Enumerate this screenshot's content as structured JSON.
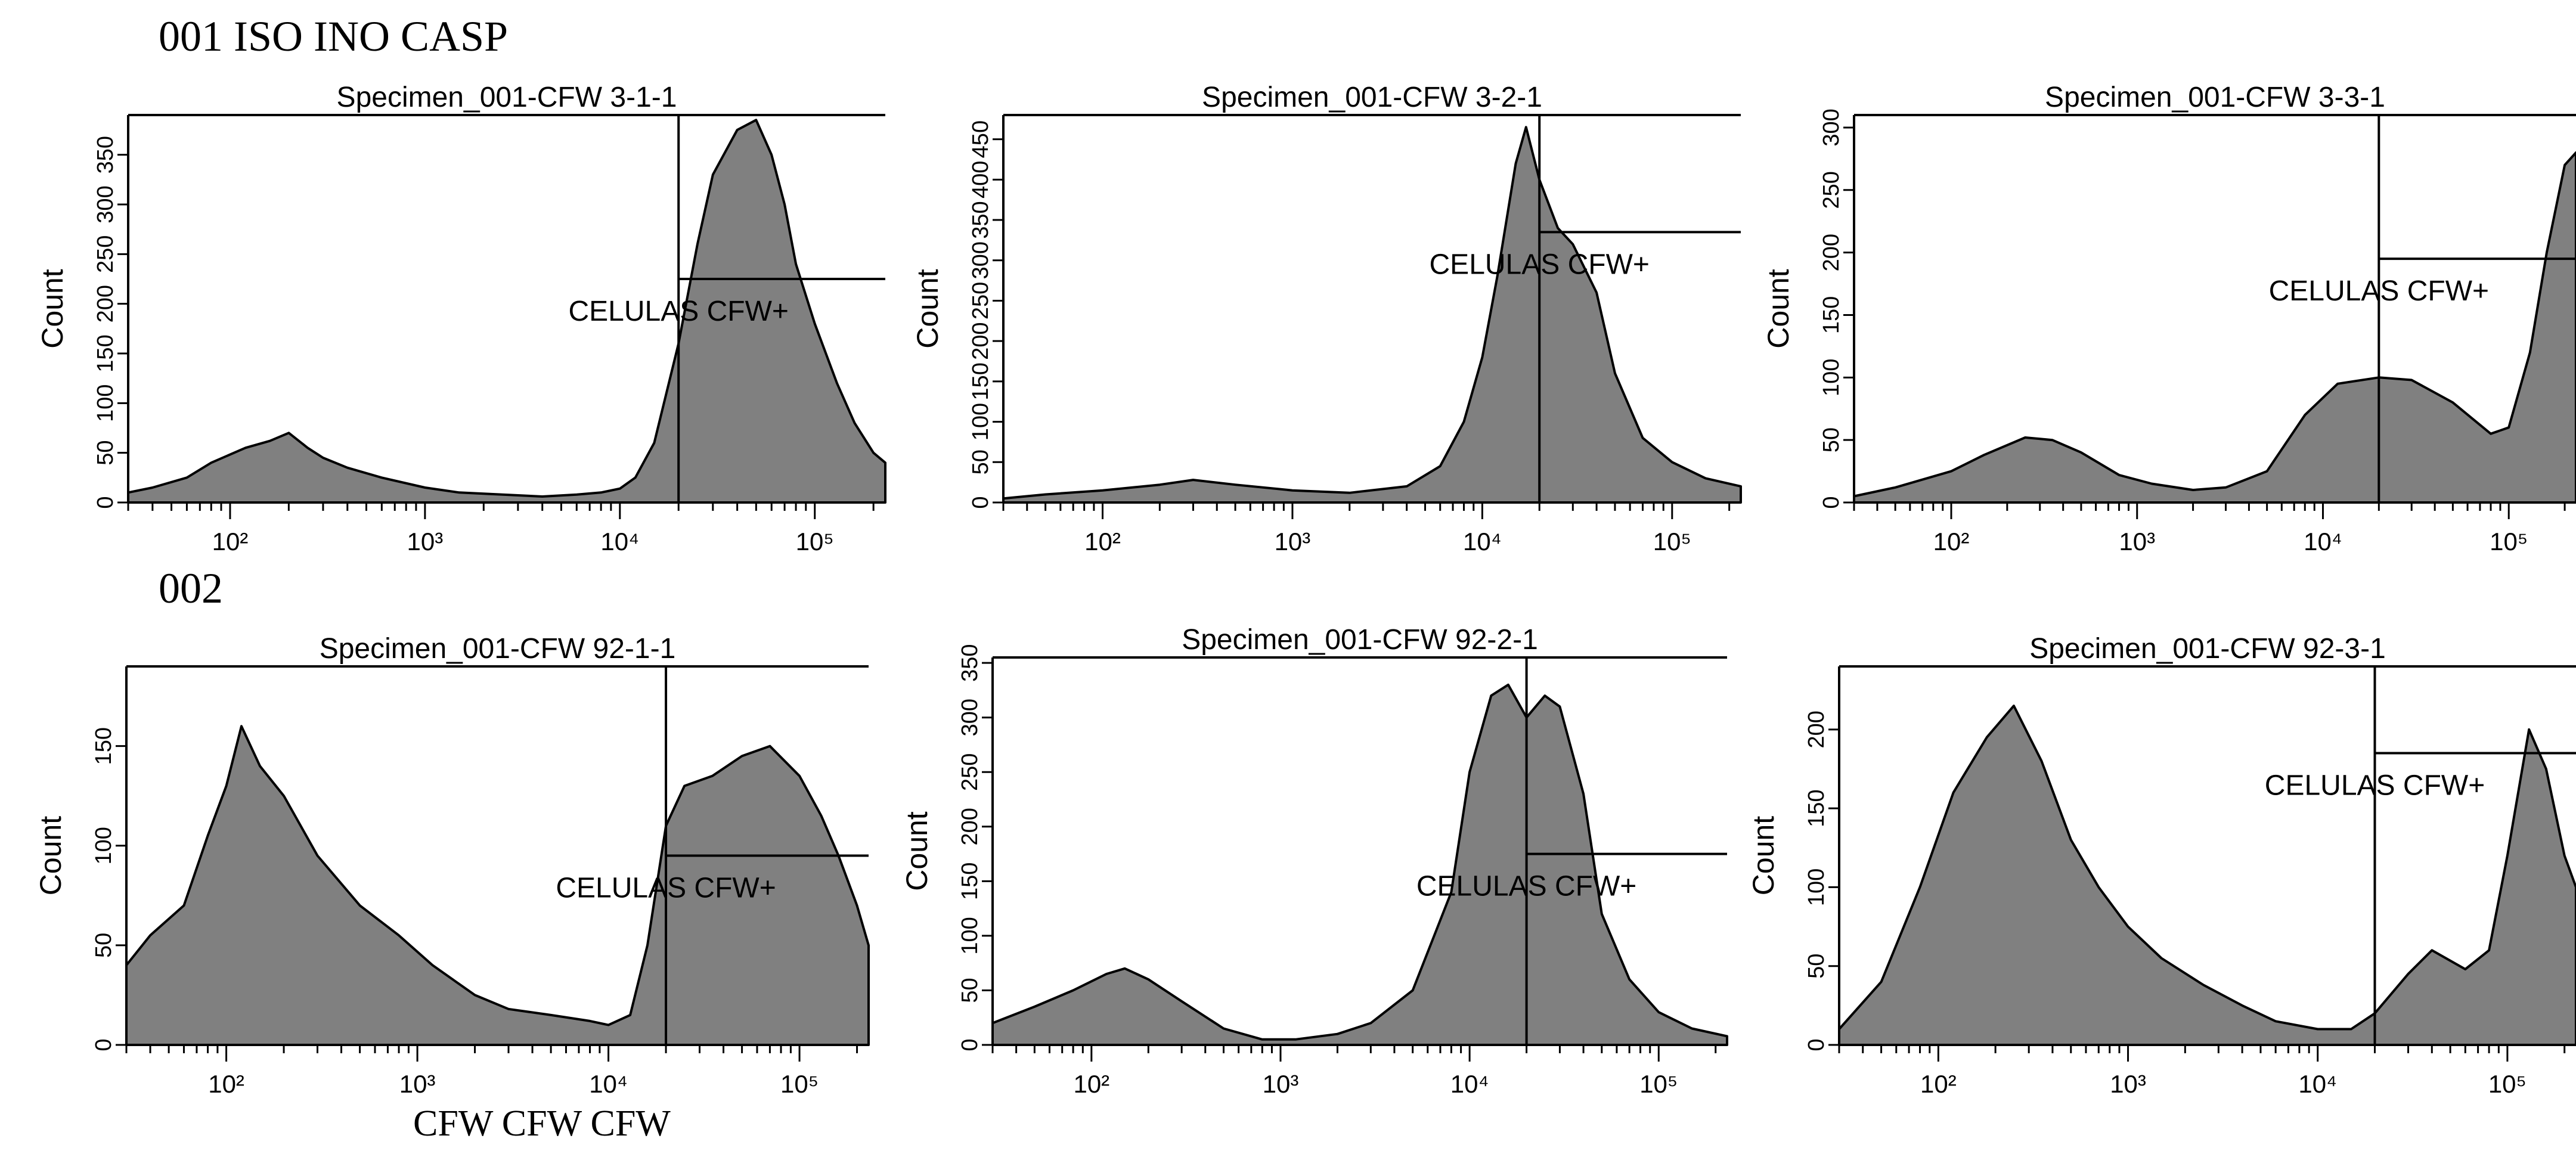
{
  "labels": {
    "row1": "001 ISO INO CASP",
    "row2": "002",
    "footer": "CFW CFW CFW"
  },
  "style": {
    "fill": "#808080",
    "stroke": "#000000"
  },
  "chart_data": [
    {
      "type": "area",
      "title": "Specimen_001-CFW 3-1-1",
      "ylabel": "Count",
      "xscale": "log",
      "xlim": [
        30,
        230000
      ],
      "ylim": [
        0,
        390
      ],
      "yticks": [
        0,
        50,
        100,
        150,
        200,
        250,
        300,
        350
      ],
      "xticks": [
        100,
        1000,
        10000,
        100000
      ],
      "xtick_labels": [
        "10²",
        "10³",
        "10⁴",
        "10⁵"
      ],
      "gate": {
        "label": "CELULAS CFW+",
        "x_start": 20000,
        "y": 225
      },
      "series": [
        {
          "x": [
            30,
            40,
            60,
            80,
            120,
            160,
            200,
            250,
            300,
            400,
            600,
            1000,
            1500,
            2500,
            4000,
            6000,
            8000,
            10000,
            12000,
            15000,
            20000,
            25000,
            30000,
            40000,
            50000,
            60000,
            70000,
            80000,
            100000,
            130000,
            160000,
            200000,
            230000
          ],
          "y": [
            10,
            15,
            25,
            40,
            55,
            62,
            70,
            55,
            45,
            35,
            25,
            15,
            10,
            8,
            6,
            8,
            10,
            14,
            25,
            60,
            160,
            260,
            330,
            375,
            385,
            350,
            300,
            240,
            180,
            120,
            80,
            50,
            40
          ]
        }
      ]
    },
    {
      "type": "area",
      "title": "Specimen_001-CFW 3-2-1",
      "ylabel": "Count",
      "xscale": "log",
      "xlim": [
        30,
        230000
      ],
      "ylim": [
        0,
        480
      ],
      "yticks": [
        0,
        50,
        100,
        150,
        200,
        250,
        300,
        350,
        400,
        450
      ],
      "xticks": [
        100,
        1000,
        10000,
        100000
      ],
      "xtick_labels": [
        "10²",
        "10³",
        "10⁴",
        "10⁵"
      ],
      "gate": {
        "label": "CELULAS CFW+",
        "x_start": 20000,
        "y": 335
      },
      "series": [
        {
          "x": [
            30,
            50,
            100,
            200,
            300,
            500,
            1000,
            2000,
            4000,
            6000,
            8000,
            10000,
            12000,
            15000,
            17000,
            20000,
            25000,
            30000,
            40000,
            50000,
            70000,
            100000,
            150000,
            230000
          ],
          "y": [
            5,
            10,
            15,
            22,
            28,
            22,
            15,
            12,
            20,
            45,
            100,
            180,
            280,
            420,
            465,
            400,
            340,
            320,
            260,
            160,
            80,
            50,
            30,
            20
          ]
        }
      ]
    },
    {
      "type": "area",
      "title": "Specimen_001-CFW 3-3-1",
      "ylabel": "Count",
      "xscale": "log",
      "xlim": [
        30,
        230000
      ],
      "ylim": [
        0,
        310
      ],
      "yticks": [
        0,
        50,
        100,
        150,
        200,
        250,
        300
      ],
      "xticks": [
        100,
        1000,
        10000,
        100000
      ],
      "xtick_labels": [
        "10²",
        "10³",
        "10⁴",
        "10⁵"
      ],
      "gate": {
        "label": "CELULAS CFW+",
        "x_start": 20000,
        "y": 195
      },
      "series": [
        {
          "x": [
            30,
            50,
            100,
            150,
            250,
            350,
            500,
            800,
            1200,
            2000,
            3000,
            5000,
            8000,
            12000,
            20000,
            30000,
            50000,
            80000,
            100000,
            130000,
            160000,
            200000,
            230000
          ],
          "y": [
            5,
            12,
            25,
            38,
            52,
            50,
            40,
            22,
            15,
            10,
            12,
            25,
            70,
            95,
            100,
            98,
            80,
            55,
            60,
            120,
            200,
            270,
            280
          ]
        }
      ]
    },
    {
      "type": "area",
      "title": "Specimen_001-CFW 92-1-1",
      "ylabel": "Count",
      "xscale": "log",
      "xlim": [
        30,
        230000
      ],
      "ylim": [
        0,
        190
      ],
      "yticks": [
        0,
        50,
        100,
        150
      ],
      "xticks": [
        100,
        1000,
        10000,
        100000
      ],
      "xtick_labels": [
        "10²",
        "10³",
        "10⁴",
        "10⁵"
      ],
      "gate": {
        "label": "CELULAS CFW+",
        "x_start": 20000,
        "y": 95
      },
      "series": [
        {
          "x": [
            30,
            40,
            60,
            80,
            100,
            120,
            150,
            200,
            300,
            500,
            800,
            1200,
            2000,
            3000,
            5000,
            8000,
            10000,
            13000,
            16000,
            20000,
            25000,
            35000,
            50000,
            70000,
            100000,
            130000,
            160000,
            200000,
            230000
          ],
          "y": [
            40,
            55,
            70,
            105,
            130,
            160,
            140,
            125,
            95,
            70,
            55,
            40,
            25,
            18,
            15,
            12,
            10,
            15,
            50,
            110,
            130,
            135,
            145,
            150,
            135,
            115,
            95,
            70,
            50
          ]
        }
      ]
    },
    {
      "type": "area",
      "title": "Specimen_001-CFW 92-2-1",
      "ylabel": "Count",
      "xscale": "log",
      "xlim": [
        30,
        230000
      ],
      "ylim": [
        0,
        355
      ],
      "yticks": [
        0,
        50,
        100,
        150,
        200,
        250,
        300,
        350
      ],
      "xticks": [
        100,
        1000,
        10000,
        100000
      ],
      "xtick_labels": [
        "10²",
        "10³",
        "10⁴",
        "10⁵"
      ],
      "gate": {
        "label": "CELULAS CFW+",
        "x_start": 20000,
        "y": 175
      },
      "series": [
        {
          "x": [
            30,
            50,
            80,
            120,
            150,
            200,
            300,
            500,
            800,
            1200,
            2000,
            3000,
            5000,
            8000,
            10000,
            13000,
            16000,
            20000,
            25000,
            30000,
            40000,
            50000,
            70000,
            100000,
            150000,
            230000
          ],
          "y": [
            20,
            35,
            50,
            65,
            70,
            60,
            40,
            15,
            5,
            5,
            10,
            20,
            50,
            140,
            250,
            320,
            330,
            300,
            320,
            310,
            230,
            120,
            60,
            30,
            15,
            8
          ]
        }
      ]
    },
    {
      "type": "area",
      "title": "Specimen_001-CFW 92-3-1",
      "ylabel": "Count",
      "xscale": "log",
      "xlim": [
        30,
        230000
      ],
      "ylim": [
        0,
        240
      ],
      "yticks": [
        0,
        50,
        100,
        150,
        200
      ],
      "xticks": [
        100,
        1000,
        10000,
        100000
      ],
      "xtick_labels": [
        "10²",
        "10³",
        "10⁴",
        "10⁵"
      ],
      "gate": {
        "label": "CELULAS CFW+",
        "x_start": 20000,
        "y": 185
      },
      "series": [
        {
          "x": [
            30,
            50,
            80,
            120,
            180,
            250,
            350,
            500,
            700,
            1000,
            1500,
            2500,
            4000,
            6000,
            10000,
            15000,
            20000,
            30000,
            40000,
            60000,
            80000,
            100000,
            130000,
            160000,
            200000,
            230000
          ],
          "y": [
            10,
            40,
            100,
            160,
            195,
            215,
            180,
            130,
            100,
            75,
            55,
            38,
            25,
            15,
            10,
            10,
            20,
            45,
            60,
            48,
            60,
            120,
            200,
            175,
            120,
            100
          ]
        }
      ]
    }
  ]
}
